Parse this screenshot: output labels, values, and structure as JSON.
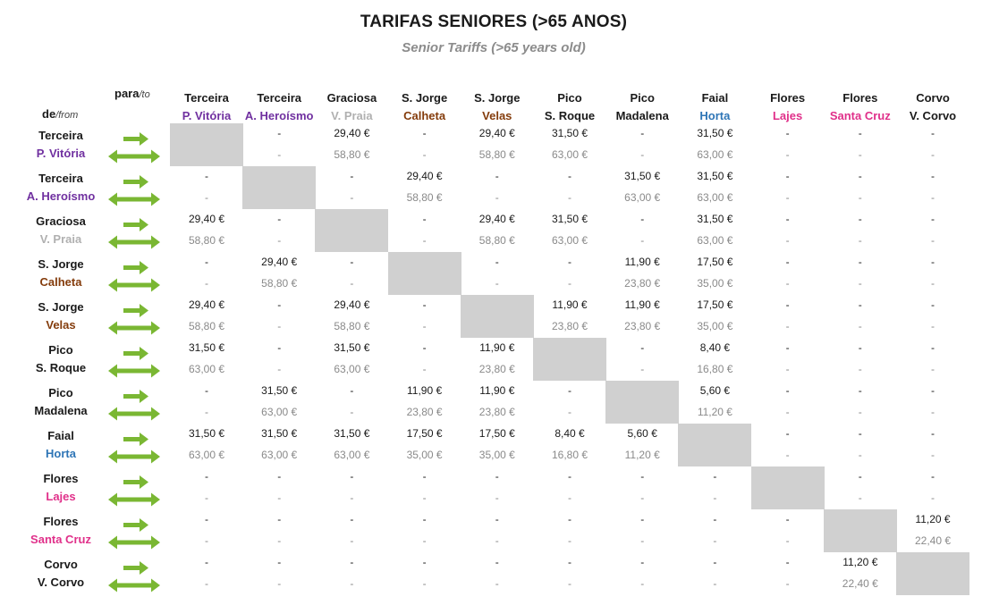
{
  "title": "TARIFAS SENIORES (>65 ANOS)",
  "subtitle": "Senior Tariffs (>65 years old)",
  "header": {
    "para": "para",
    "to": "/to",
    "de": "de",
    "from": "/from"
  },
  "colors": {
    "terceira_pv": "#7030a0",
    "terceira_ah": "#7030a0",
    "graciosa": "#b0b0b0",
    "calheta": "#843c0c",
    "velas": "#843c0c",
    "pico": "#1a1a1a",
    "horta": "#2e75b6",
    "flores": "#e0308a",
    "corvo": "#1a1a1a",
    "arrow": "#7ab733",
    "diag": "#d0d0d0"
  },
  "icons": {
    "arrows": "one-way-and-return-arrows-icon"
  },
  "islands": [
    {
      "island": "Terceira",
      "place": "P. Vitória",
      "color": "#7030a0"
    },
    {
      "island": "Terceira",
      "place": "A. Heroísmo",
      "color": "#7030a0"
    },
    {
      "island": "Graciosa",
      "place": "V. Praia",
      "color": "#b0b0b0"
    },
    {
      "island": "S. Jorge",
      "place": "Calheta",
      "color": "#843c0c"
    },
    {
      "island": "S. Jorge",
      "place": "Velas",
      "color": "#843c0c"
    },
    {
      "island": "Pico",
      "place": "S. Roque",
      "color": "#1a1a1a"
    },
    {
      "island": "Pico",
      "place": "Madalena",
      "color": "#1a1a1a"
    },
    {
      "island": "Faial",
      "place": "Horta",
      "color": "#2e75b6"
    },
    {
      "island": "Flores",
      "place": "Lajes",
      "color": "#e0308a"
    },
    {
      "island": "Flores",
      "place": "Santa Cruz",
      "color": "#e0308a"
    },
    {
      "island": "Corvo",
      "place": "V. Corvo",
      "color": "#1a1a1a"
    }
  ],
  "fares": [
    [
      null,
      [
        "-",
        "-"
      ],
      [
        "29,40 €",
        "58,80 €"
      ],
      [
        "-",
        "-"
      ],
      [
        "29,40 €",
        "58,80 €"
      ],
      [
        "31,50 €",
        "63,00 €"
      ],
      [
        "-",
        "-"
      ],
      [
        "31,50 €",
        "63,00 €"
      ],
      [
        "-",
        "-"
      ],
      [
        "-",
        "-"
      ],
      [
        "-",
        "-"
      ]
    ],
    [
      [
        "-",
        "-"
      ],
      null,
      [
        "-",
        "-"
      ],
      [
        "29,40 €",
        "58,80 €"
      ],
      [
        "-",
        "-"
      ],
      [
        "-",
        "-"
      ],
      [
        "31,50 €",
        "63,00 €"
      ],
      [
        "31,50 €",
        "63,00 €"
      ],
      [
        "-",
        "-"
      ],
      [
        "-",
        "-"
      ],
      [
        "-",
        "-"
      ]
    ],
    [
      [
        "29,40 €",
        "58,80 €"
      ],
      [
        "-",
        "-"
      ],
      null,
      [
        "-",
        "-"
      ],
      [
        "29,40 €",
        "58,80 €"
      ],
      [
        "31,50 €",
        "63,00 €"
      ],
      [
        "-",
        "-"
      ],
      [
        "31,50 €",
        "63,00 €"
      ],
      [
        "-",
        "-"
      ],
      [
        "-",
        "-"
      ],
      [
        "-",
        "-"
      ]
    ],
    [
      [
        "-",
        "-"
      ],
      [
        "29,40 €",
        "58,80 €"
      ],
      [
        "-",
        "-"
      ],
      null,
      [
        "-",
        "-"
      ],
      [
        "-",
        "-"
      ],
      [
        "11,90 €",
        "23,80 €"
      ],
      [
        "17,50 €",
        "35,00 €"
      ],
      [
        "-",
        "-"
      ],
      [
        "-",
        "-"
      ],
      [
        "-",
        "-"
      ]
    ],
    [
      [
        "29,40 €",
        "58,80 €"
      ],
      [
        "-",
        "-"
      ],
      [
        "29,40 €",
        "58,80 €"
      ],
      [
        "-",
        "-"
      ],
      null,
      [
        "11,90 €",
        "23,80 €"
      ],
      [
        "11,90 €",
        "23,80 €"
      ],
      [
        "17,50 €",
        "35,00 €"
      ],
      [
        "-",
        "-"
      ],
      [
        "-",
        "-"
      ],
      [
        "-",
        "-"
      ]
    ],
    [
      [
        "31,50 €",
        "63,00 €"
      ],
      [
        "-",
        "-"
      ],
      [
        "31,50 €",
        "63,00 €"
      ],
      [
        "-",
        "-"
      ],
      [
        "11,90 €",
        "23,80 €"
      ],
      null,
      [
        "-",
        "-"
      ],
      [
        "8,40 €",
        "16,80 €"
      ],
      [
        "-",
        "-"
      ],
      [
        "-",
        "-"
      ],
      [
        "-",
        "-"
      ]
    ],
    [
      [
        "-",
        "-"
      ],
      [
        "31,50 €",
        "63,00 €"
      ],
      [
        "-",
        "-"
      ],
      [
        "11,90 €",
        "23,80 €"
      ],
      [
        "11,90 €",
        "23,80 €"
      ],
      [
        "-",
        "-"
      ],
      null,
      [
        "5,60 €",
        "11,20 €"
      ],
      [
        "-",
        "-"
      ],
      [
        "-",
        "-"
      ],
      [
        "-",
        "-"
      ]
    ],
    [
      [
        "31,50 €",
        "63,00 €"
      ],
      [
        "31,50 €",
        "63,00 €"
      ],
      [
        "31,50 €",
        "63,00 €"
      ],
      [
        "17,50 €",
        "35,00 €"
      ],
      [
        "17,50 €",
        "35,00 €"
      ],
      [
        "8,40 €",
        "16,80 €"
      ],
      [
        "5,60 €",
        "11,20 €"
      ],
      null,
      [
        "-",
        "-"
      ],
      [
        "-",
        "-"
      ],
      [
        "-",
        "-"
      ]
    ],
    [
      [
        "-",
        "-"
      ],
      [
        "-",
        "-"
      ],
      [
        "-",
        "-"
      ],
      [
        "-",
        "-"
      ],
      [
        "-",
        "-"
      ],
      [
        "-",
        "-"
      ],
      [
        "-",
        "-"
      ],
      [
        "-",
        "-"
      ],
      null,
      [
        "-",
        "-"
      ],
      [
        "-",
        "-"
      ]
    ],
    [
      [
        "-",
        "-"
      ],
      [
        "-",
        "-"
      ],
      [
        "-",
        "-"
      ],
      [
        "-",
        "-"
      ],
      [
        "-",
        "-"
      ],
      [
        "-",
        "-"
      ],
      [
        "-",
        "-"
      ],
      [
        "-",
        "-"
      ],
      [
        "-",
        "-"
      ],
      null,
      [
        "11,20 €",
        "22,40 €"
      ]
    ],
    [
      [
        "-",
        "-"
      ],
      [
        "-",
        "-"
      ],
      [
        "-",
        "-"
      ],
      [
        "-",
        "-"
      ],
      [
        "-",
        "-"
      ],
      [
        "-",
        "-"
      ],
      [
        "-",
        "-"
      ],
      [
        "-",
        "-"
      ],
      [
        "-",
        "-"
      ],
      [
        "11,20 €",
        "22,40 €"
      ],
      null
    ]
  ]
}
